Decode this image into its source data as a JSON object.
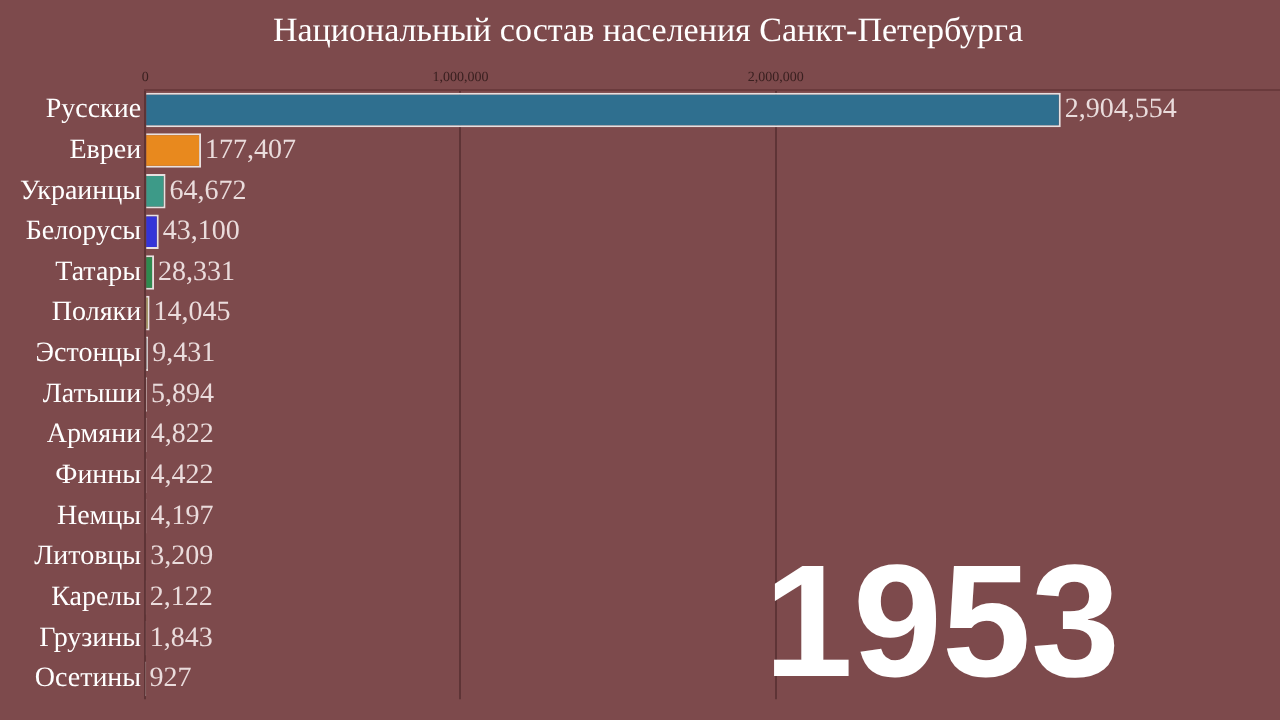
{
  "chart_data": {
    "type": "bar",
    "orientation": "horizontal",
    "title": "Национальный состав населения Санкт-Петербурга",
    "categories": [
      "Русские",
      "Евреи",
      "Украинцы",
      "Белорусы",
      "Татары",
      "Поляки",
      "Эстонцы",
      "Латыши",
      "Армяни",
      "Финны",
      "Немцы",
      "Литовцы",
      "Карелы",
      "Грузины",
      "Осетины"
    ],
    "values": [
      2904554,
      177407,
      64672,
      43100,
      28331,
      14045,
      9431,
      5894,
      4822,
      4422,
      4197,
      3209,
      2122,
      1843,
      927
    ],
    "colors": [
      "#2f6f8f",
      "#e8891e",
      "#3d9a88",
      "#3434d8",
      "#2e8a4e",
      "#a9a26e",
      "#a3a9aa",
      "#c7b3b3",
      "#c9b4b4",
      "#c6b1b1",
      "#c8b3b3",
      "#c5b0b0",
      "#c7b2b2",
      "#c6b1b1",
      "#c5b0b0"
    ],
    "xlim": [
      0,
      3600000
    ],
    "xticks": [
      {
        "value": 0,
        "label": "0"
      },
      {
        "value": 1000000,
        "label": "1,000,000"
      },
      {
        "value": 2000000,
        "label": "2,000,000"
      }
    ],
    "grid": "x",
    "value_labels": [
      "2,904,554",
      "177,407",
      "64,672",
      "43,100",
      "28,331",
      "14,045",
      "9,431",
      "5,894",
      "4,822",
      "4,422",
      "4,197",
      "3,209",
      "2,122",
      "1,843",
      "927"
    ],
    "tick_labels": "x",
    "annotations": [
      "1953"
    ]
  }
}
